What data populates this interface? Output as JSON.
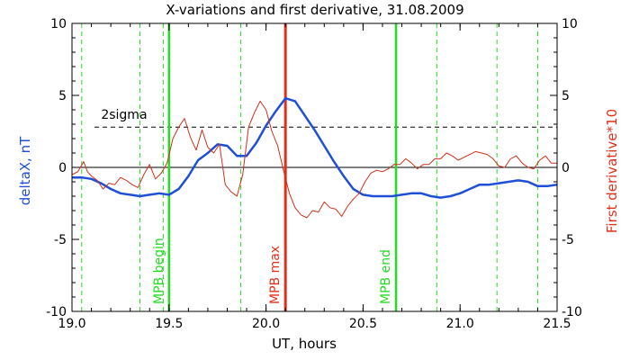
{
  "chart_data": {
    "type": "line",
    "title": "X-variations and first derivative, 31.08.2009",
    "xlabel": "UT, hours",
    "ylabel_left": "deltaX, nT",
    "ylabel_right": "First derivative*10",
    "xlim": [
      19.0,
      21.5
    ],
    "ylim": [
      -10,
      10
    ],
    "x_ticks": [
      "19.0",
      "19.5",
      "20.0",
      "20.5",
      "21.0",
      "21.5"
    ],
    "x_tick_values": [
      19.0,
      19.5,
      20.0,
      20.5,
      21.0,
      21.5
    ],
    "y_ticks": [
      "10",
      "5",
      "0",
      "-5",
      "-10"
    ],
    "y_tick_values": [
      10,
      5,
      0,
      -5,
      -10
    ],
    "colors": {
      "deltaX": "#1f4fd6",
      "derivative": "#d0301a",
      "mpb_max": "#e0301a",
      "mpb_edges": "#22dd22",
      "dashed_green": "#22dd22",
      "sigma_line": "#000000",
      "zero_line": "#000000"
    },
    "sigma": {
      "label": "2sigma",
      "value": 2.8
    },
    "zero_line": 0,
    "vertical_lines": [
      {
        "x": 19.5,
        "label": "MPB begin",
        "style": "solid",
        "role": "mpb_edges"
      },
      {
        "x": 20.1,
        "label": "MPB max",
        "style": "solid",
        "role": "mpb_max"
      },
      {
        "x": 20.67,
        "label": "MPB end",
        "style": "solid",
        "role": "mpb_edges"
      }
    ],
    "dashed_green_lines": [
      19.05,
      19.35,
      19.47,
      19.87,
      20.88,
      21.19,
      21.4
    ],
    "series": [
      {
        "name": "deltaX, nT",
        "axis": "left",
        "x": [
          19.0,
          19.05,
          19.1,
          19.15,
          19.2,
          19.25,
          19.3,
          19.35,
          19.4,
          19.45,
          19.5,
          19.55,
          19.6,
          19.65,
          19.7,
          19.75,
          19.8,
          19.85,
          19.9,
          19.95,
          20.0,
          20.05,
          20.1,
          20.15,
          20.2,
          20.25,
          20.3,
          20.35,
          20.4,
          20.45,
          20.5,
          20.55,
          20.6,
          20.65,
          20.7,
          20.75,
          20.8,
          20.85,
          20.9,
          20.95,
          21.0,
          21.05,
          21.1,
          21.15,
          21.2,
          21.25,
          21.3,
          21.35,
          21.4,
          21.45,
          21.5
        ],
        "y": [
          -0.7,
          -0.7,
          -0.8,
          -1.1,
          -1.5,
          -1.8,
          -1.9,
          -2.0,
          -1.9,
          -1.8,
          -1.9,
          -1.5,
          -0.6,
          0.5,
          1.0,
          1.6,
          1.5,
          0.8,
          0.8,
          1.7,
          2.9,
          3.9,
          4.8,
          4.6,
          3.6,
          2.6,
          1.5,
          0.4,
          -0.6,
          -1.5,
          -1.9,
          -2.0,
          -2.0,
          -2.0,
          -1.9,
          -1.8,
          -1.8,
          -2.0,
          -2.1,
          -2.0,
          -1.8,
          -1.5,
          -1.2,
          -1.2,
          -1.1,
          -1.0,
          -0.9,
          -1.0,
          -1.3,
          -1.3,
          -1.2
        ]
      },
      {
        "name": "First derivative*10",
        "axis": "right",
        "x": [
          19.0,
          19.03,
          19.06,
          19.08,
          19.1,
          19.13,
          19.16,
          19.19,
          19.22,
          19.25,
          19.28,
          19.31,
          19.34,
          19.37,
          19.4,
          19.43,
          19.46,
          19.49,
          19.52,
          19.55,
          19.58,
          19.61,
          19.64,
          19.67,
          19.7,
          19.73,
          19.76,
          19.79,
          19.82,
          19.85,
          19.88,
          19.91,
          19.94,
          19.97,
          20.0,
          20.03,
          20.06,
          20.09,
          20.12,
          20.15,
          20.18,
          20.21,
          20.24,
          20.27,
          20.3,
          20.33,
          20.36,
          20.39,
          20.42,
          20.45,
          20.48,
          20.51,
          20.54,
          20.57,
          20.6,
          20.63,
          20.66,
          20.69,
          20.72,
          20.75,
          20.78,
          20.81,
          20.84,
          20.87,
          20.9,
          20.93,
          20.96,
          20.99,
          21.02,
          21.05,
          21.08,
          21.11,
          21.14,
          21.17,
          21.2,
          21.23,
          21.26,
          21.29,
          21.32,
          21.35,
          21.38,
          21.41,
          21.44,
          21.47,
          21.5
        ],
        "y": [
          -0.5,
          -0.3,
          0.4,
          -0.3,
          -0.6,
          -0.9,
          -1.5,
          -1.1,
          -1.2,
          -0.7,
          -0.9,
          -1.2,
          -1.4,
          -0.5,
          0.2,
          -0.8,
          -0.4,
          0.3,
          2.0,
          2.8,
          3.4,
          2.1,
          1.2,
          2.6,
          1.4,
          1.0,
          1.6,
          -1.2,
          -1.7,
          -2.0,
          -0.5,
          2.8,
          3.8,
          4.6,
          4.0,
          2.5,
          1.5,
          -0.2,
          -1.8,
          -2.8,
          -3.3,
          -3.5,
          -3.0,
          -3.1,
          -2.4,
          -2.8,
          -2.9,
          -3.4,
          -2.7,
          -2.2,
          -1.8,
          -1.0,
          -0.4,
          -0.2,
          -0.3,
          -0.1,
          0.2,
          0.2,
          0.6,
          0.3,
          -0.1,
          0.2,
          0.2,
          0.6,
          0.6,
          1.0,
          0.8,
          0.5,
          0.7,
          0.9,
          1.1,
          1.0,
          0.9,
          0.6,
          0.1,
          0.0,
          0.6,
          0.8,
          0.3,
          0.0,
          -0.1,
          0.5,
          0.8,
          0.3,
          0.3
        ]
      }
    ]
  }
}
